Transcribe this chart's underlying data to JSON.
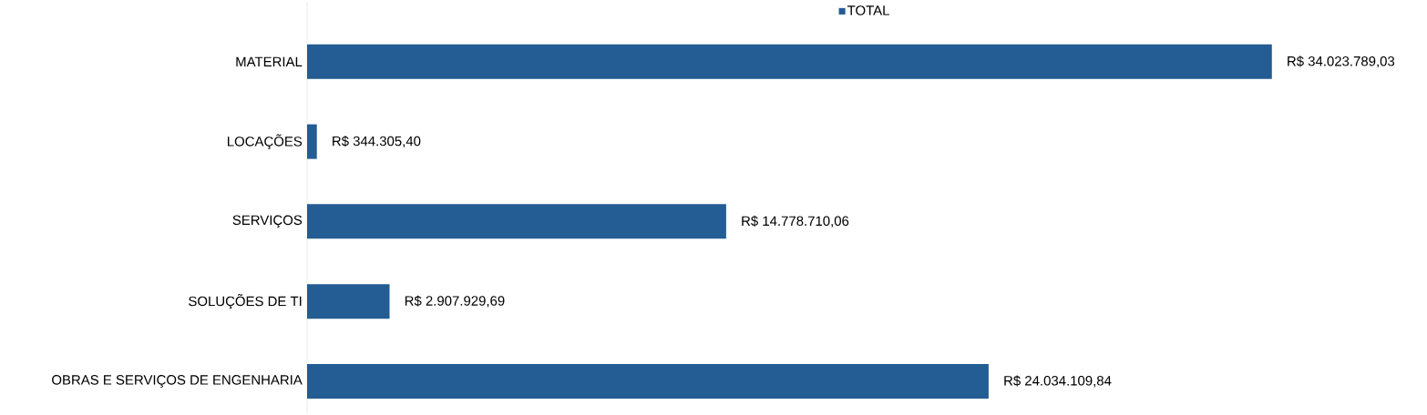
{
  "chart_data": {
    "type": "bar",
    "orientation": "horizontal",
    "legend": "top",
    "categories": [
      "MATERIAL",
      "LOCAÇÕES",
      "SERVIÇOS",
      "SOLUÇÕES DE TI",
      "OBRAS E SERVIÇOS DE ENGENHARIA"
    ],
    "series": [
      {
        "name": "TOTAL",
        "color": "#245c94",
        "values": [
          34023789.03,
          344305.4,
          14778710.06,
          2907929.69,
          24034109.84
        ],
        "value_labels": [
          "R$ 34.023.789,03",
          "R$ 344.305,40",
          "R$ 14.778.710,06",
          "R$ 2.907.929,69",
          "R$ 24.034.109,84"
        ]
      }
    ]
  }
}
